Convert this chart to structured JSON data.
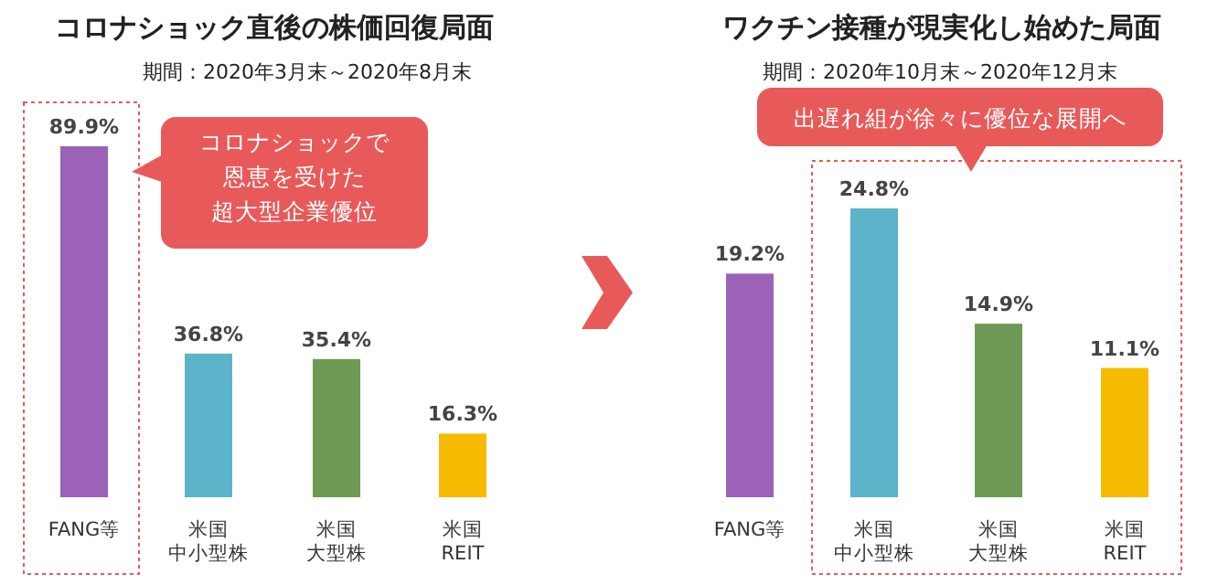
{
  "chart_data": [
    {
      "type": "bar",
      "title": "コロナショック直後の株価回復局面",
      "subtitle": "期間：2020年3月末～2020年8月末",
      "categories": [
        "FANG等",
        "米国中小型株",
        "米国大型株",
        "米国REIT"
      ],
      "values": [
        89.9,
        36.8,
        35.4,
        16.3
      ],
      "colors": [
        "#9b62b8",
        "#5bb4c9",
        "#6f9a55",
        "#f6bb00"
      ],
      "value_labels": [
        "89.9%",
        "36.8%",
        "35.4%",
        "16.3%"
      ],
      "annotations": [
        "コロナショックで恩恵を受けた超大型企業優位"
      ]
    },
    {
      "type": "bar",
      "title": "ワクチン接種が現実化し始めた局面",
      "subtitle": "期間：2020年10月末～2020年12月末",
      "categories": [
        "FANG等",
        "米国中小型株",
        "米国大型株",
        "米国REIT"
      ],
      "values": [
        19.2,
        24.8,
        14.9,
        11.1
      ],
      "colors": [
        "#9b62b8",
        "#5bb4c9",
        "#6f9a55",
        "#f6bb00"
      ],
      "value_labels": [
        "19.2%",
        "24.8%",
        "14.9%",
        "11.1%"
      ],
      "annotations": [
        "出遅れ組が徐々に優位な展開へ"
      ]
    }
  ]
}
